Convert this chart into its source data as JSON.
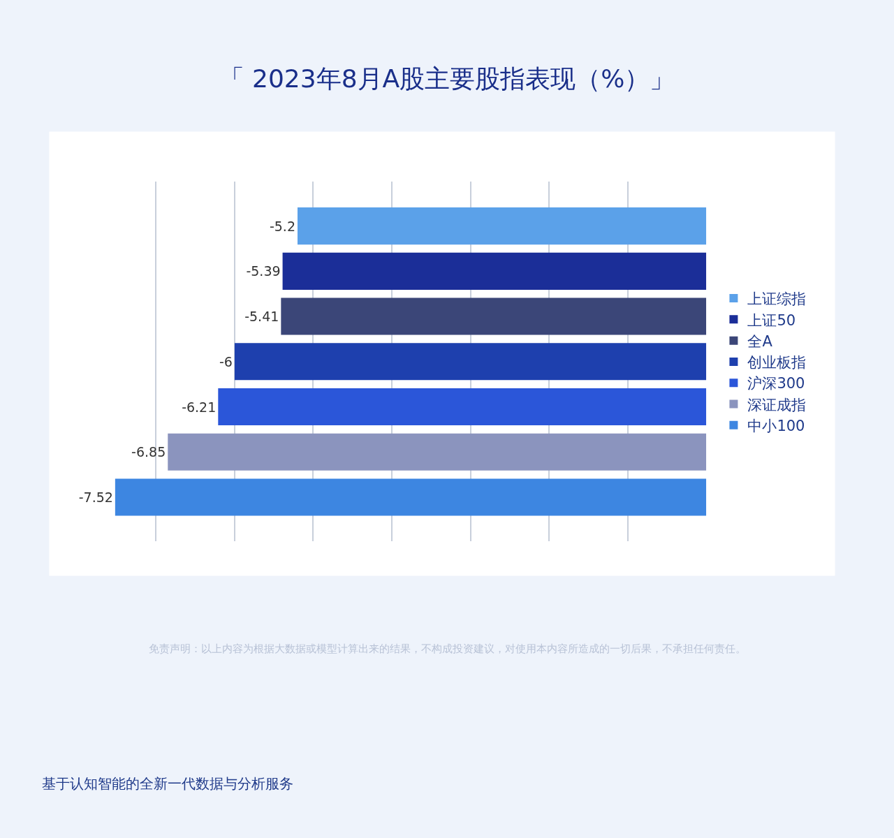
{
  "chart_data": {
    "type": "bar",
    "orientation": "horizontal",
    "title": "「 2023年8月A股主要股指表现（%）」",
    "categories": [
      null
    ],
    "series": [
      {
        "name": "上证综指",
        "color": "#5ba1e9",
        "values": [
          -5.2
        ]
      },
      {
        "name": "上证50",
        "color": "#1b2e98",
        "values": [
          -5.39
        ]
      },
      {
        "name": "全A",
        "color": "#3b4678",
        "values": [
          -5.41
        ]
      },
      {
        "name": "创业板指",
        "color": "#1e40ae",
        "values": [
          -6
        ]
      },
      {
        "name": "沪深300",
        "color": "#2b56d9",
        "values": [
          -6.21
        ]
      },
      {
        "name": "深证成指",
        "color": "#8b94be",
        "values": [
          -6.85
        ]
      },
      {
        "name": "中小100",
        "color": "#3d86e1",
        "values": [
          -7.52
        ]
      }
    ],
    "grid": "x",
    "tick_labels": false,
    "legend": "right",
    "data_labels": true,
    "annotations": [
      "免责声明：以上内容为根据大数据或模型计算出来的结果，不构成投资建议，对使用本内容所造成的一切后果，不承担任何责任。",
      "基于认知智能的全新一代数据与分析服务"
    ]
  }
}
